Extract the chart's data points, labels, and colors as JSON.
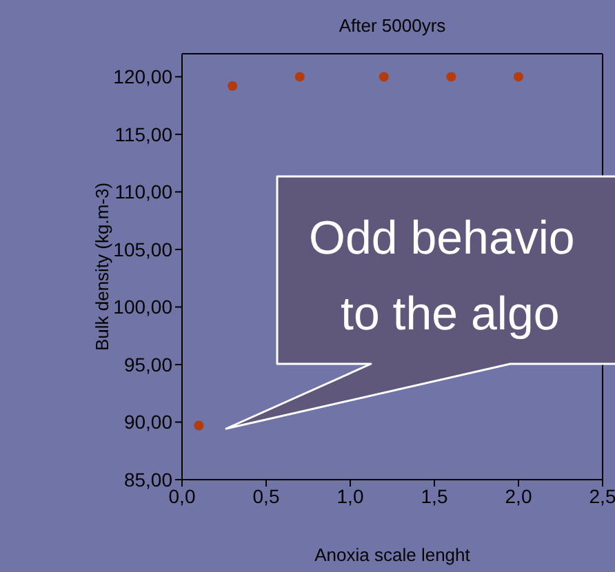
{
  "chart_data": {
    "type": "scatter",
    "title": "After 5000yrs",
    "xlabel": "Anoxia scale lenght",
    "ylabel": "Bulk density (kg.m-3)",
    "x": [
      0.1,
      0.3,
      0.7,
      1.2,
      1.6,
      2.0
    ],
    "series": [
      {
        "color": "#b23c0e",
        "values": [
          89.7,
          119.2,
          120,
          120,
          120,
          120
        ]
      }
    ],
    "xlim": [
      0,
      2.5
    ],
    "xticks": [
      {
        "value": 0,
        "label": "0,0"
      },
      {
        "value": 0.5,
        "label": "0,5"
      },
      {
        "value": 1,
        "label": "1,0"
      },
      {
        "value": 1.5,
        "label": "1,5"
      },
      {
        "value": 2,
        "label": "2,0"
      },
      {
        "value": 2.5,
        "label": "2,5"
      }
    ],
    "ylim": [
      85,
      122
    ],
    "yticks": [
      {
        "value": 85,
        "label": "85,00"
      },
      {
        "value": 90,
        "label": "90,00"
      },
      {
        "value": 95,
        "label": "95,00"
      },
      {
        "value": 100,
        "label": "100,00"
      },
      {
        "value": 105,
        "label": "105,00"
      },
      {
        "value": 110,
        "label": "110,00"
      },
      {
        "value": 115,
        "label": "115,00"
      },
      {
        "value": 120,
        "label": "120,00"
      }
    ],
    "grid": false,
    "legend": false,
    "marker": "circle",
    "annotations": [
      "Odd behavio",
      "to the algo"
    ]
  }
}
